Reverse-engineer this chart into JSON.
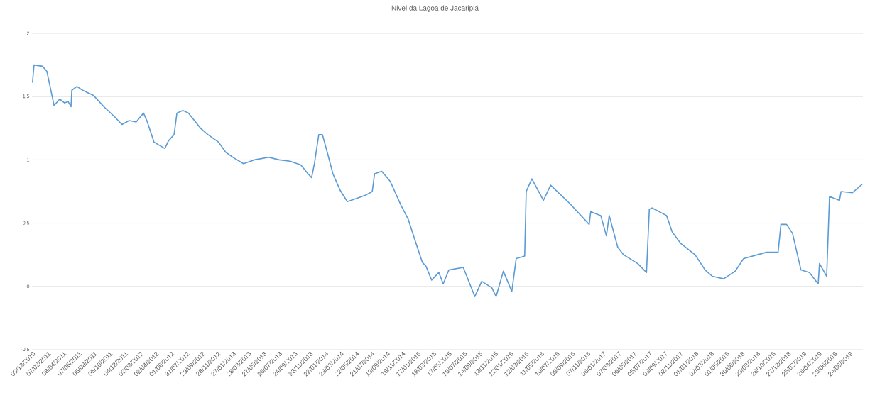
{
  "chart_data": {
    "type": "line",
    "title": "Nivel da Lagoa de Jacaripiá",
    "color": "#5b9bd5",
    "grid": "y",
    "ylim": [
      -0.5,
      2
    ],
    "yticks": [
      2,
      {
        "value": 1.5,
        "label": "1,5"
      },
      1,
      {
        "value": 0.5,
        "label": "0,5"
      },
      0,
      {
        "value": -0.5,
        "label": "-0,5"
      }
    ],
    "xlim": [
      "2010-12-07",
      "2019-10-14"
    ],
    "xticks": [
      {
        "value": "2010-12-09",
        "label": "09/12/2010"
      },
      {
        "value": "2011-02-07",
        "label": "07/02/2011"
      },
      {
        "value": "2011-04-08",
        "label": "08/04/2011"
      },
      {
        "value": "2011-06-07",
        "label": "07/06/2011"
      },
      {
        "value": "2011-08-06",
        "label": "06/08/2011"
      },
      {
        "value": "2011-10-05",
        "label": "05/10/2011"
      },
      {
        "value": "2011-12-04",
        "label": "04/12/2011"
      },
      {
        "value": "2012-02-02",
        "label": "02/02/2012"
      },
      {
        "value": "2012-04-02",
        "label": "02/04/2012"
      },
      {
        "value": "2012-06-01",
        "label": "01/06/2012"
      },
      {
        "value": "2012-07-31",
        "label": "31/07/2012"
      },
      {
        "value": "2012-09-29",
        "label": "29/09/2012"
      },
      {
        "value": "2012-11-28",
        "label": "28/11/2012"
      },
      {
        "value": "2013-01-27",
        "label": "27/01/2013"
      },
      {
        "value": "2013-03-28",
        "label": "28/03/2013"
      },
      {
        "value": "2013-05-27",
        "label": "27/05/2013"
      },
      {
        "value": "2013-07-26",
        "label": "26/07/2013"
      },
      {
        "value": "2013-09-24",
        "label": "24/09/2013"
      },
      {
        "value": "2013-11-23",
        "label": "23/11/2013"
      },
      {
        "value": "2014-01-22",
        "label": "22/01/2014"
      },
      {
        "value": "2014-03-23",
        "label": "23/03/2014"
      },
      {
        "value": "2014-05-22",
        "label": "22/05/2014"
      },
      {
        "value": "2014-07-21",
        "label": "21/07/2014"
      },
      {
        "value": "2014-09-19",
        "label": "19/09/2014"
      },
      {
        "value": "2014-11-18",
        "label": "18/11/2014"
      },
      {
        "value": "2015-01-17",
        "label": "17/01/2015"
      },
      {
        "value": "2015-03-18",
        "label": "18/03/2015"
      },
      {
        "value": "2015-05-17",
        "label": "17/05/2015"
      },
      {
        "value": "2015-07-16",
        "label": "16/07/2015"
      },
      {
        "value": "2015-09-14",
        "label": "14/09/2015"
      },
      {
        "value": "2015-11-13",
        "label": "13/11/2015"
      },
      {
        "value": "2016-01-12",
        "label": "12/01/2016"
      },
      {
        "value": "2016-03-12",
        "label": "12/03/2016"
      },
      {
        "value": "2016-05-11",
        "label": "11/05/2016"
      },
      {
        "value": "2016-07-10",
        "label": "10/07/2016"
      },
      {
        "value": "2016-09-08",
        "label": "08/09/2016"
      },
      {
        "value": "2016-11-07",
        "label": "07/11/2016"
      },
      {
        "value": "2017-01-06",
        "label": "06/01/2017"
      },
      {
        "value": "2017-03-07",
        "label": "07/03/2017"
      },
      {
        "value": "2017-05-06",
        "label": "06/05/2017"
      },
      {
        "value": "2017-07-05",
        "label": "05/07/2017"
      },
      {
        "value": "2017-09-03",
        "label": "03/09/2017"
      },
      {
        "value": "2017-11-02",
        "label": "02/11/2017"
      },
      {
        "value": "2018-01-01",
        "label": "01/01/2018"
      },
      {
        "value": "2018-03-02",
        "label": "02/03/2018"
      },
      {
        "value": "2018-05-01",
        "label": "01/05/2018"
      },
      {
        "value": "2018-06-30",
        "label": "30/06/2018"
      },
      {
        "value": "2018-08-29",
        "label": "29/08/2018"
      },
      {
        "value": "2018-10-28",
        "label": "28/10/2018"
      },
      {
        "value": "2018-12-27",
        "label": "27/12/2018"
      },
      {
        "value": "2019-02-25",
        "label": "25/02/2019"
      },
      {
        "value": "2019-04-26",
        "label": "26/04/2019"
      },
      {
        "value": "2019-06-25",
        "label": "25/06/2019"
      },
      {
        "value": "2019-08-24",
        "label": "24/08/2019"
      }
    ],
    "x": [
      "2010-12-09",
      "2010-12-15",
      "2011-01-17",
      "2011-02-03",
      "2011-03-03",
      "2011-03-25",
      "2011-04-13",
      "2011-04-27",
      "2011-05-08",
      "2011-05-11",
      "2011-05-31",
      "2011-06-22",
      "2011-08-03",
      "2011-09-13",
      "2011-10-25",
      "2011-11-22",
      "2011-12-20",
      "2012-01-17",
      "2012-02-14",
      "2012-02-27",
      "2012-03-26",
      "2012-05-07",
      "2012-05-21",
      "2012-06-12",
      "2012-06-23",
      "2012-07-16",
      "2012-08-07",
      "2012-09-23",
      "2012-10-21",
      "2012-12-02",
      "2012-12-30",
      "2013-01-27",
      "2013-03-09",
      "2013-04-20",
      "2013-06-15",
      "2013-07-26",
      "2013-09-06",
      "2013-10-18",
      "2013-11-15",
      "2013-11-29",
      "2013-12-10",
      "2013-12-27",
      "2014-01-10",
      "2014-01-29",
      "2014-02-20",
      "2014-03-20",
      "2014-04-17",
      "2014-05-15",
      "2014-06-26",
      "2014-07-23",
      "2014-08-01",
      "2014-08-29",
      "2014-10-01",
      "2014-11-12",
      "2014-12-10",
      "2015-01-06",
      "2015-02-03",
      "2015-02-17",
      "2015-03-11",
      "2015-04-08",
      "2015-04-25",
      "2015-05-17",
      "2015-07-12",
      "2015-08-26",
      "2015-09-22",
      "2015-10-31",
      "2015-11-17",
      "2015-12-15",
      "2016-01-17",
      "2016-02-03",
      "2016-03-07",
      "2016-03-13",
      "2016-04-04",
      "2016-05-19",
      "2016-06-16",
      "2016-08-27",
      "2016-11-13",
      "2016-11-19",
      "2016-12-28",
      "2017-01-19",
      "2017-01-30",
      "2017-03-04",
      "2017-03-27",
      "2017-05-21",
      "2017-06-24",
      "2017-07-05",
      "2017-07-16",
      "2017-09-10",
      "2017-10-02",
      "2017-11-04",
      "2017-12-30",
      "2018-02-07",
      "2018-03-07",
      "2018-04-20",
      "2018-06-04",
      "2018-07-07",
      "2018-10-04",
      "2018-11-18",
      "2018-11-29",
      "2018-12-21",
      "2019-01-13",
      "2019-02-15",
      "2019-03-20",
      "2019-04-23",
      "2019-04-28",
      "2019-05-26",
      "2019-06-06",
      "2019-07-15",
      "2019-07-21",
      "2019-09-03",
      "2019-10-12"
    ],
    "values": [
      1.61,
      1.75,
      1.74,
      1.7,
      1.43,
      1.48,
      1.45,
      1.46,
      1.42,
      1.55,
      1.58,
      1.55,
      1.51,
      1.42,
      1.34,
      1.28,
      1.31,
      1.3,
      1.37,
      1.31,
      1.14,
      1.09,
      1.15,
      1.2,
      1.37,
      1.39,
      1.37,
      1.25,
      1.2,
      1.14,
      1.06,
      1.02,
      0.97,
      1.0,
      1.02,
      1.0,
      0.99,
      0.96,
      0.89,
      0.86,
      0.97,
      1.2,
      1.2,
      1.06,
      0.89,
      0.76,
      0.67,
      0.69,
      0.72,
      0.75,
      0.89,
      0.91,
      0.83,
      0.64,
      0.53,
      0.36,
      0.19,
      0.16,
      0.05,
      0.11,
      0.02,
      0.13,
      0.15,
      -0.08,
      0.04,
      -0.01,
      -0.08,
      0.12,
      -0.04,
      0.22,
      0.24,
      0.75,
      0.85,
      0.68,
      0.8,
      0.66,
      0.49,
      0.59,
      0.56,
      0.4,
      0.56,
      0.31,
      0.25,
      0.18,
      0.11,
      0.61,
      0.62,
      0.56,
      0.43,
      0.34,
      0.25,
      0.13,
      0.08,
      0.06,
      0.12,
      0.22,
      0.27,
      0.27,
      0.49,
      0.49,
      0.42,
      0.13,
      0.11,
      0.02,
      0.18,
      0.08,
      0.71,
      0.68,
      0.75,
      0.74,
      0.81
    ]
  }
}
